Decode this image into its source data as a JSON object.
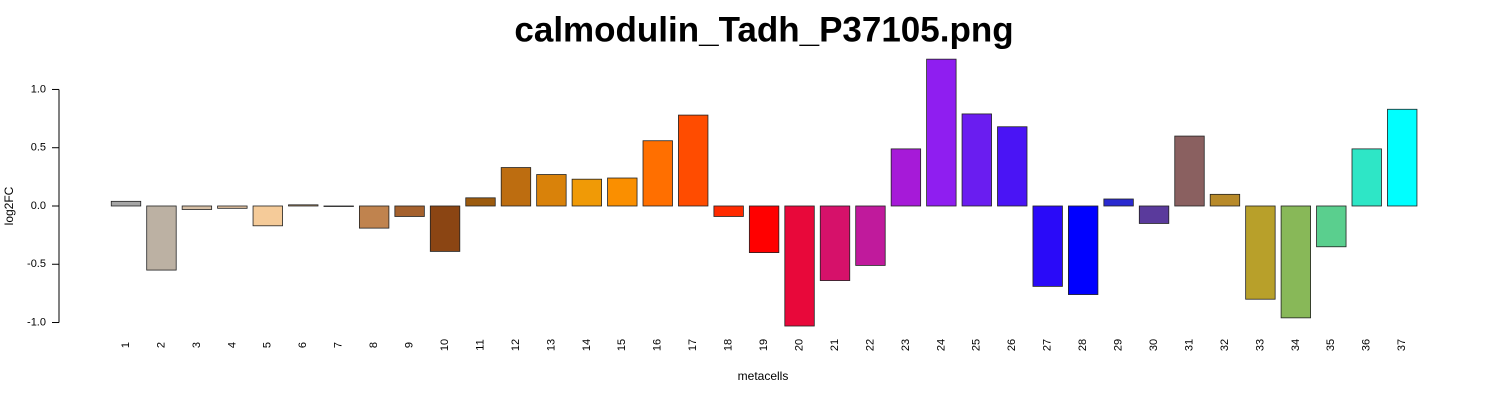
{
  "chart_data": {
    "type": "bar",
    "title": "calmodulin_Tadh_P37105.png",
    "x_label": "metacells",
    "y_label": "log2FC",
    "categories": [
      "1",
      "2",
      "3",
      "4",
      "5",
      "6",
      "7",
      "8",
      "9",
      "10",
      "11",
      "12",
      "13",
      "14",
      "15",
      "16",
      "17",
      "18",
      "19",
      "20",
      "21",
      "22",
      "23",
      "24",
      "25",
      "26",
      "27",
      "28",
      "29",
      "30",
      "31",
      "32",
      "33",
      "34",
      "35",
      "36",
      "37"
    ],
    "values": [
      0.04,
      -0.55,
      -0.03,
      -0.02,
      -0.17,
      0.01,
      0.0,
      -0.19,
      -0.09,
      -0.39,
      0.07,
      0.33,
      0.27,
      0.23,
      0.24,
      0.56,
      0.78,
      -0.09,
      -0.4,
      -1.03,
      -0.64,
      -0.51,
      0.49,
      1.26,
      0.79,
      0.68,
      -0.69,
      -0.76,
      0.06,
      -0.15,
      0.6,
      0.1,
      -0.8,
      -0.96,
      -0.35,
      0.49,
      0.83
    ],
    "colors": [
      "#a6a6a6",
      "#bcb1a3",
      "#d6bfa5",
      "#e0c09e",
      "#f5cb99",
      "#c8a06e",
      "#dcd0c0",
      "#c0834e",
      "#a5612d",
      "#8b4513",
      "#9c5b0f",
      "#bd6d10",
      "#d9820a",
      "#f09a06",
      "#fa8f00",
      "#ff6f00",
      "#ff4c00",
      "#ff2a00",
      "#ff0000",
      "#e8083a",
      "#d6116a",
      "#c01a9c",
      "#a61ad8",
      "#8f1ef0",
      "#6a1df0",
      "#4a14f5",
      "#2a0af8",
      "#0000ff",
      "#2a2ad0",
      "#5a3a9c",
      "#8a6060",
      "#b88a2a",
      "#b8a02a",
      "#88b858",
      "#5acf8e",
      "#2ee6c6",
      "#00ffff"
    ],
    "ylim": [
      -1.12,
      1.3
    ],
    "yticks": [
      {
        "value": -1,
        "label": "-1.0"
      },
      {
        "value": -0.5,
        "label": "-0.5"
      },
      {
        "value": 0,
        "label": "0.0"
      },
      {
        "value": 0.5,
        "label": "0.5"
      },
      {
        "value": 1,
        "label": "1.0"
      }
    ]
  }
}
